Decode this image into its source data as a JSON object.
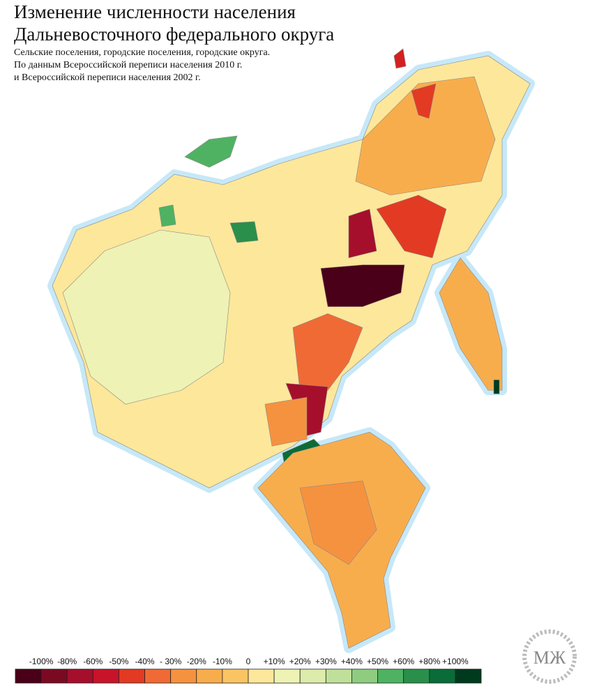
{
  "header": {
    "title_lines": [
      "Изменение численности населения",
      "Дальневосточного федерального округа"
    ],
    "subtitle_lines": [
      "Сельские поселения, городские поселения, городские округа.",
      "По данным Всероссийской переписи населения 2010 г.",
      "и Всероссийской переписи населения 2002 г."
    ]
  },
  "legend": {
    "labels": [
      "-100%",
      "-80%",
      "-60%",
      "-50%",
      "-40%",
      "- 30%",
      "-20%",
      "-10%",
      "0",
      "+10%",
      "+20%",
      "+30%",
      "+40%",
      "+50%",
      "+60%",
      "+80%",
      "+100%"
    ],
    "colors": [
      "#4a0018",
      "#7a0a22",
      "#a50f2c",
      "#c8142a",
      "#e33a23",
      "#f06a35",
      "#f5923f",
      "#f8ad4d",
      "#fac463",
      "#fde79a",
      "#eef2b4",
      "#dcecaa",
      "#bfe09a",
      "#8fcc80",
      "#4fb262",
      "#2a8f4a",
      "#0a6c38",
      "#003a1e"
    ]
  },
  "logo": {
    "text": "МЖ"
  }
}
